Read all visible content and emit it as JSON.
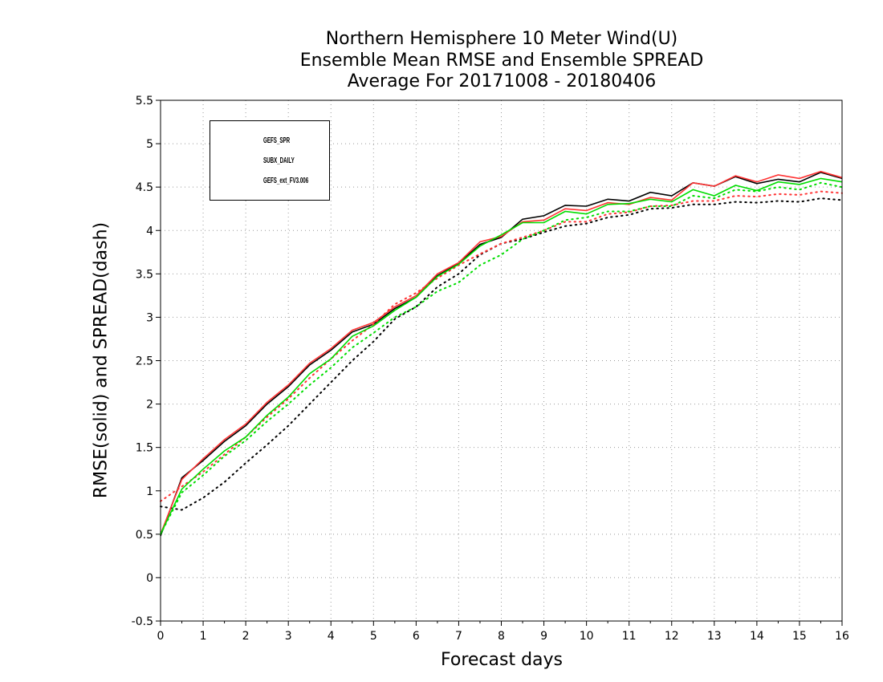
{
  "chart_data": {
    "type": "line",
    "title": [
      "Northern Hemisphere 10 Meter Wind(U)",
      "Ensemble Mean RMSE and Ensemble SPREAD",
      "Average For 20171008 - 20180406"
    ],
    "xlabel": "Forecast days",
    "ylabel": "RMSE(solid) and SPREAD(dash)",
    "xlim": [
      0,
      16
    ],
    "ylim": [
      -0.5,
      5.5
    ],
    "xticks": [
      "0",
      "1",
      "2",
      "3",
      "4",
      "5",
      "6",
      "7",
      "8",
      "9",
      "10",
      "11",
      "12",
      "13",
      "14",
      "15",
      "16"
    ],
    "yticks": [
      "-0.5",
      "0",
      "0.5",
      "1",
      "1.5",
      "2",
      "2.5",
      "3",
      "3.5",
      "4",
      "4.5",
      "5",
      "5.5"
    ],
    "grid": true,
    "legend_position": "top-left",
    "x": [
      0,
      0.5,
      1,
      1.5,
      2,
      2.5,
      3,
      3.5,
      4,
      4.5,
      5,
      5.5,
      6,
      6.5,
      7,
      7.5,
      8,
      8.5,
      9,
      9.5,
      10,
      10.5,
      11,
      11.5,
      12,
      12.5,
      13,
      13.5,
      14,
      14.5,
      15,
      15.5,
      16
    ],
    "series": [
      {
        "name": "GEFS_SPR",
        "color": "#000000",
        "rmse": [
          0.48,
          1.15,
          1.35,
          1.57,
          1.75,
          2.0,
          2.2,
          2.45,
          2.62,
          2.83,
          2.92,
          3.1,
          3.23,
          3.48,
          3.62,
          3.84,
          3.92,
          4.13,
          4.17,
          4.29,
          4.28,
          4.36,
          4.34,
          4.44,
          4.4,
          4.55,
          4.51,
          4.62,
          4.54,
          4.59,
          4.56,
          4.67,
          4.6
        ],
        "spread": [
          0.82,
          0.78,
          0.92,
          1.1,
          1.32,
          1.53,
          1.75,
          2.0,
          2.25,
          2.5,
          2.72,
          2.98,
          3.12,
          3.35,
          3.5,
          3.72,
          3.85,
          3.9,
          3.98,
          4.05,
          4.08,
          4.15,
          4.18,
          4.25,
          4.26,
          4.3,
          4.3,
          4.33,
          4.32,
          4.34,
          4.33,
          4.37,
          4.35
        ]
      },
      {
        "name": "SUBX_DAILY",
        "color": "#ff3333",
        "rmse": [
          0.5,
          1.13,
          1.37,
          1.59,
          1.77,
          2.02,
          2.22,
          2.47,
          2.64,
          2.85,
          2.94,
          3.12,
          3.25,
          3.5,
          3.63,
          3.87,
          3.93,
          4.1,
          4.12,
          4.25,
          4.23,
          4.32,
          4.3,
          4.38,
          4.35,
          4.55,
          4.51,
          4.63,
          4.56,
          4.64,
          4.6,
          4.68,
          4.61
        ],
        "spread": [
          0.88,
          1.05,
          1.22,
          1.42,
          1.62,
          1.85,
          2.06,
          2.3,
          2.52,
          2.73,
          2.92,
          3.15,
          3.28,
          3.45,
          3.6,
          3.73,
          3.85,
          3.92,
          4.0,
          4.1,
          4.1,
          4.19,
          4.21,
          4.28,
          4.29,
          4.34,
          4.34,
          4.4,
          4.39,
          4.42,
          4.41,
          4.45,
          4.43
        ]
      },
      {
        "name": "GEFS_ext_FV3.006",
        "color": "#00dd00",
        "rmse": [
          0.5,
          1.02,
          1.25,
          1.46,
          1.62,
          1.87,
          2.08,
          2.35,
          2.52,
          2.78,
          2.9,
          3.08,
          3.23,
          3.47,
          3.61,
          3.82,
          3.95,
          4.09,
          4.09,
          4.22,
          4.19,
          4.3,
          4.31,
          4.36,
          4.33,
          4.47,
          4.4,
          4.52,
          4.46,
          4.56,
          4.53,
          4.6,
          4.56
        ],
        "spread": [
          0.5,
          0.98,
          1.18,
          1.4,
          1.58,
          1.8,
          2.0,
          2.22,
          2.42,
          2.65,
          2.82,
          3.0,
          3.12,
          3.3,
          3.4,
          3.6,
          3.72,
          3.9,
          4.0,
          4.12,
          4.15,
          4.22,
          4.22,
          4.28,
          4.28,
          4.4,
          4.37,
          4.47,
          4.45,
          4.5,
          4.47,
          4.55,
          4.5
        ]
      }
    ]
  }
}
